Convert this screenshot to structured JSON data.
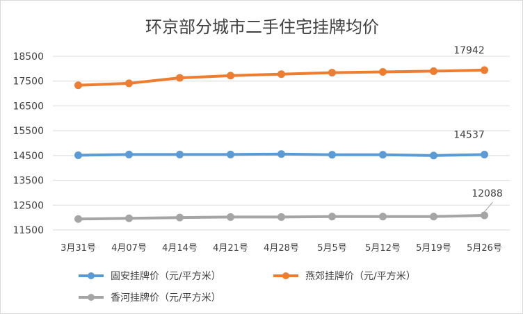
{
  "chart_data": {
    "type": "line",
    "title": "环京部分城市二手住宅挂牌均价",
    "categories": [
      "3月31号",
      "4月07号",
      "4月14号",
      "4月21号",
      "4月28号",
      "5月5号",
      "5月12号",
      "5月19号",
      "5月26号"
    ],
    "ylim": [
      11500,
      18500
    ],
    "yticks": [
      11500,
      12500,
      13500,
      14500,
      15500,
      16500,
      17500,
      18500
    ],
    "grid": true,
    "legend_position": "bottom",
    "series": [
      {
        "name": "固安挂牌价（元/平方米）",
        "color": "#5b9bd5",
        "values": [
          14510,
          14540,
          14540,
          14540,
          14560,
          14530,
          14530,
          14500,
          14537
        ],
        "end_label": "14537"
      },
      {
        "name": "燕郊挂牌价（元/平方米）",
        "color": "#ed7d31",
        "values": [
          17330,
          17410,
          17630,
          17720,
          17780,
          17840,
          17870,
          17900,
          17942
        ],
        "end_label": "17942"
      },
      {
        "name": "香河挂牌价（元/平方米）",
        "color": "#a5a5a5",
        "values": [
          11940,
          11970,
          12000,
          12020,
          12020,
          12040,
          12040,
          12040,
          12088
        ],
        "end_label": "12088"
      }
    ]
  }
}
